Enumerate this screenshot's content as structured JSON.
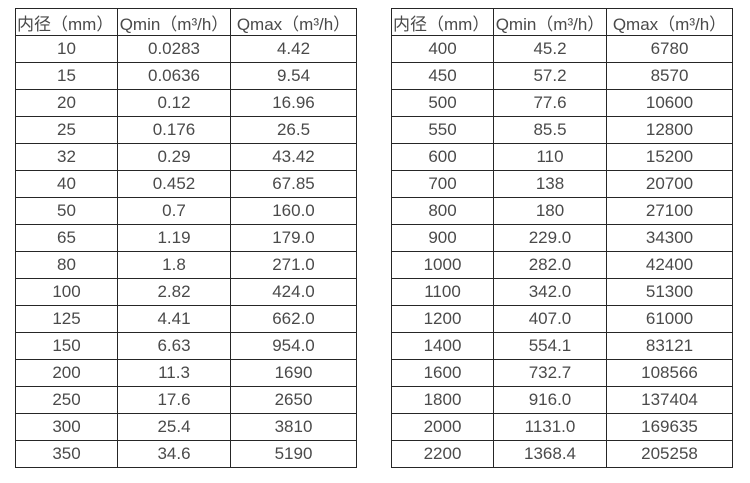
{
  "page": {
    "background": "#ffffff",
    "text_color": "#4a4a4a",
    "border_color": "#262626"
  },
  "tables": [
    {
      "name": "flow-table-small-diameters",
      "headers": [
        "内径（mm）",
        "Qmin（m³/h）",
        "Qmax（m³/h）"
      ],
      "rows": [
        [
          "10",
          "0.0283",
          "4.42"
        ],
        [
          "15",
          "0.0636",
          "9.54"
        ],
        [
          "20",
          "0.12",
          "16.96"
        ],
        [
          "25",
          "0.176",
          "26.5"
        ],
        [
          "32",
          "0.29",
          "43.42"
        ],
        [
          "40",
          "0.452",
          "67.85"
        ],
        [
          "50",
          "0.7",
          "160.0"
        ],
        [
          "65",
          "1.19",
          "179.0"
        ],
        [
          "80",
          "1.8",
          "271.0"
        ],
        [
          "100",
          "2.82",
          "424.0"
        ],
        [
          "125",
          "4.41",
          "662.0"
        ],
        [
          "150",
          "6.63",
          "954.0"
        ],
        [
          "200",
          "11.3",
          "1690"
        ],
        [
          "250",
          "17.6",
          "2650"
        ],
        [
          "300",
          "25.4",
          "3810"
        ],
        [
          "350",
          "34.6",
          "5190"
        ]
      ]
    },
    {
      "name": "flow-table-large-diameters",
      "headers": [
        "内径（mm）",
        "Qmin（m³/h）",
        "Qmax（m³/h）"
      ],
      "rows": [
        [
          "400",
          "45.2",
          "6780"
        ],
        [
          "450",
          "57.2",
          "8570"
        ],
        [
          "500",
          "77.6",
          "10600"
        ],
        [
          "550",
          "85.5",
          "12800"
        ],
        [
          "600",
          "110",
          "15200"
        ],
        [
          "700",
          "138",
          "20700"
        ],
        [
          "800",
          "180",
          "27100"
        ],
        [
          "900",
          "229.0",
          "34300"
        ],
        [
          "1000",
          "282.0",
          "42400"
        ],
        [
          "1100",
          "342.0",
          "51300"
        ],
        [
          "1200",
          "407.0",
          "61000"
        ],
        [
          "1400",
          "554.1",
          "83121"
        ],
        [
          "1600",
          "732.7",
          "108566"
        ],
        [
          "1800",
          "916.0",
          "137404"
        ],
        [
          "2000",
          "1131.0",
          "169635"
        ],
        [
          "2200",
          "1368.4",
          "205258"
        ]
      ]
    }
  ]
}
